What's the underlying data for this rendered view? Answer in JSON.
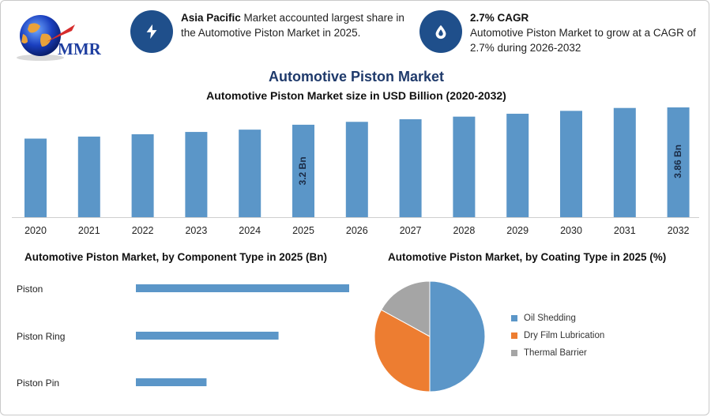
{
  "logo": {
    "text": "MMR"
  },
  "info_cards": [
    {
      "icon": "lightning-icon",
      "bold": "Asia Pacific",
      "rest": " Market accounted largest share in the Automotive Piston Market in 2025."
    },
    {
      "icon": "drop-icon",
      "bold": "2.7% CAGR",
      "rest": "Automotive Piston Market to grow at a CAGR of 2.7% during 2026-2032"
    }
  ],
  "colors": {
    "bar": "#5b96c8",
    "navy": "#1f4f8b",
    "orange": "#ed7d31",
    "gray": "#a5a5a5"
  },
  "chart_data": [
    {
      "type": "bar",
      "title": "Automotive Piston Market",
      "subtitle": "Automotive Piston Market size in USD Billion (2020-2032)",
      "categories": [
        "2020",
        "2021",
        "2022",
        "2023",
        "2024",
        "2025",
        "2026",
        "2027",
        "2028",
        "2029",
        "2030",
        "2031",
        "2032"
      ],
      "values": [
        2.72,
        2.79,
        2.87,
        2.95,
        3.03,
        3.2,
        3.3,
        3.39,
        3.48,
        3.58,
        3.68,
        3.78,
        3.86
      ],
      "data_labels": {
        "2025": "3.2 Bn",
        "2032": "3.86 Bn"
      },
      "ylim": [
        0,
        4.1
      ]
    },
    {
      "type": "bar",
      "orientation": "horizontal",
      "title": "Automotive Piston Market, by Component Type in 2025 (Bn)",
      "categories": [
        "Piston",
        "Piston Ring",
        "Piston Pin"
      ],
      "values": [
        1.6,
        1.07,
        0.53
      ],
      "xlim": [
        0,
        1.6
      ]
    },
    {
      "type": "pie",
      "title": "Automotive Piston Market, by Coating Type in 2025 (%)",
      "labels": [
        "Oil Shedding",
        "Dry Film Lubrication",
        "Thermal Barrier"
      ],
      "values": [
        50,
        33,
        17
      ],
      "legend": "right"
    }
  ]
}
